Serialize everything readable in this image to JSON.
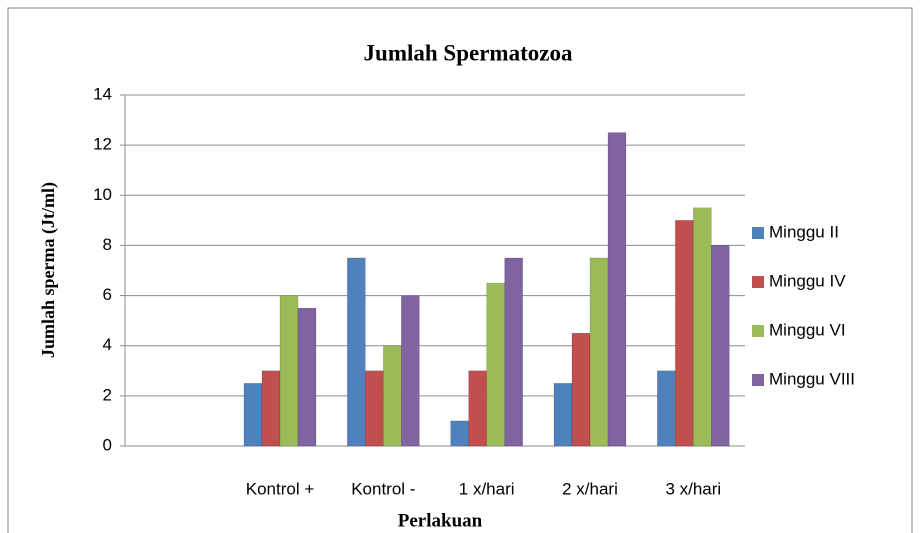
{
  "chart_data": {
    "type": "bar",
    "title": "Jumlah Spermatozoa",
    "x_label": "Perlakuan",
    "y_label": "Jumlah sperma (Jt/ml)",
    "categories": [
      null,
      "Kontrol +",
      "Kontrol -",
      "1 x/hari",
      "2 x/hari",
      "3 x/hari"
    ],
    "series": [
      {
        "name": "Minggu II",
        "color": "#4f81bd",
        "values": [
          null,
          2.5,
          7.5,
          1,
          2.5,
          3
        ]
      },
      {
        "name": "Minggu IV",
        "color": "#c0504d",
        "values": [
          null,
          3,
          3,
          3,
          4.5,
          9
        ]
      },
      {
        "name": "Minggu VI",
        "color": "#9bbb59",
        "values": [
          null,
          6,
          4,
          6.5,
          7.5,
          9.5
        ]
      },
      {
        "name": "Minggu VIII",
        "color": "#8064a2",
        "values": [
          null,
          5.5,
          6,
          7.5,
          12.5,
          8
        ]
      }
    ],
    "ylim": [
      0,
      14
    ],
    "yticks": [
      0,
      2,
      4,
      6,
      8,
      10,
      12,
      14
    ],
    "grid": true,
    "legend": "right"
  }
}
